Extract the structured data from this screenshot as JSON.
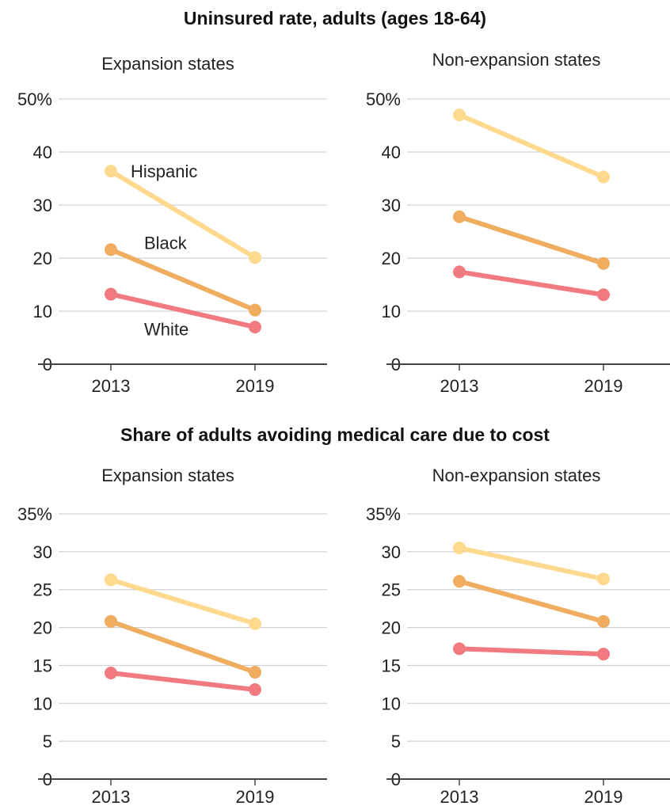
{
  "titles": {
    "top": "Uninsured rate, adults (ages 18-64)",
    "bottom": "Share of adults avoiding medical care due to cost"
  },
  "colors": {
    "Hispanic": "#fed98e",
    "Black": "#f0ad5f",
    "White": "#f07a80"
  },
  "chart_data": [
    {
      "type": "line",
      "subtitle": "Expansion states",
      "x": [
        "2013",
        "2019"
      ],
      "ylim": [
        0,
        50
      ],
      "yticks": [
        0,
        10,
        20,
        30,
        40,
        50
      ],
      "ytick_labels": [
        "0",
        "10",
        "20",
        "30",
        "40",
        "50%"
      ],
      "grid": true,
      "series": [
        {
          "name": "Hispanic",
          "values": [
            36.4,
            20.1
          ]
        },
        {
          "name": "Black",
          "values": [
            21.6,
            10.2
          ]
        },
        {
          "name": "White",
          "values": [
            13.2,
            7.0
          ]
        }
      ]
    },
    {
      "type": "line",
      "subtitle": "Non-expansion states",
      "x": [
        "2013",
        "2019"
      ],
      "ylim": [
        0,
        50
      ],
      "yticks": [
        0,
        10,
        20,
        30,
        40,
        50
      ],
      "ytick_labels": [
        "0",
        "10",
        "20",
        "30",
        "40",
        "50%"
      ],
      "grid": true,
      "series": [
        {
          "values": [
            47.0,
            35.3
          ]
        },
        {
          "values": [
            27.8,
            19.0
          ]
        },
        {
          "values": [
            17.4,
            13.1
          ]
        }
      ]
    },
    {
      "type": "line",
      "subtitle": "Expansion states",
      "x": [
        "2013",
        "2019"
      ],
      "ylim": [
        0,
        35
      ],
      "yticks": [
        0,
        5,
        10,
        15,
        20,
        25,
        30,
        35
      ],
      "ytick_labels": [
        "0",
        "5",
        "10",
        "15",
        "20",
        "25",
        "30",
        "35%"
      ],
      "grid": true,
      "series": [
        {
          "values": [
            26.3,
            20.5
          ]
        },
        {
          "values": [
            20.8,
            14.1
          ]
        },
        {
          "values": [
            14.0,
            11.8
          ]
        }
      ]
    },
    {
      "type": "line",
      "subtitle": "Non-expansion states",
      "x": [
        "2013",
        "2019"
      ],
      "ylim": [
        0,
        35
      ],
      "yticks": [
        0,
        5,
        10,
        15,
        20,
        25,
        30,
        35
      ],
      "ytick_labels": [
        "0",
        "5",
        "10",
        "15",
        "20",
        "25",
        "30",
        "35%"
      ],
      "grid": true,
      "series": [
        {
          "values": [
            30.5,
            26.4
          ]
        },
        {
          "values": [
            26.1,
            20.8
          ]
        },
        {
          "values": [
            17.2,
            16.5
          ]
        }
      ]
    }
  ]
}
